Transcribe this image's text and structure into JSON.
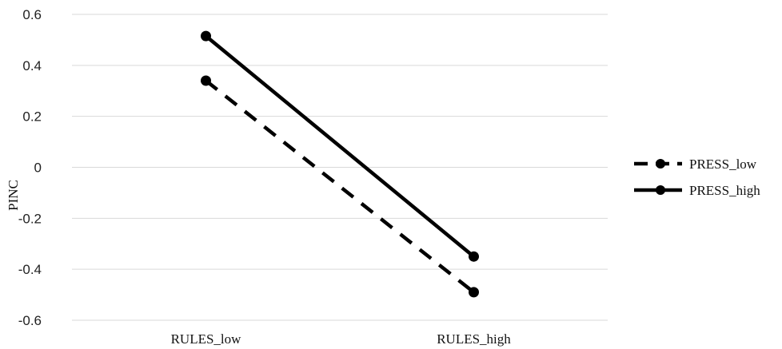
{
  "chart_data": {
    "type": "line",
    "categories": [
      "RULES_low",
      "RULES_high"
    ],
    "series": [
      {
        "name": "PRESS_low",
        "values": [
          0.34,
          -0.49
        ],
        "style": "dashed",
        "color": "#000000"
      },
      {
        "name": "PRESS_high",
        "values": [
          0.515,
          -0.35
        ],
        "style": "solid",
        "color": "#000000"
      }
    ],
    "title": "",
    "xlabel": "",
    "ylabel": "PINC",
    "ylim": [
      -0.6,
      0.6
    ],
    "yticks": [
      "0.6",
      "0.4",
      "0.2",
      "0",
      "-0.2",
      "-0.4",
      "-0.6"
    ],
    "ytick_values": [
      0.6,
      0.4,
      0.2,
      0,
      -0.2,
      -0.4,
      -0.6
    ],
    "grid": true,
    "gridline_color": "#d9d9d9",
    "legend_position": "right"
  }
}
